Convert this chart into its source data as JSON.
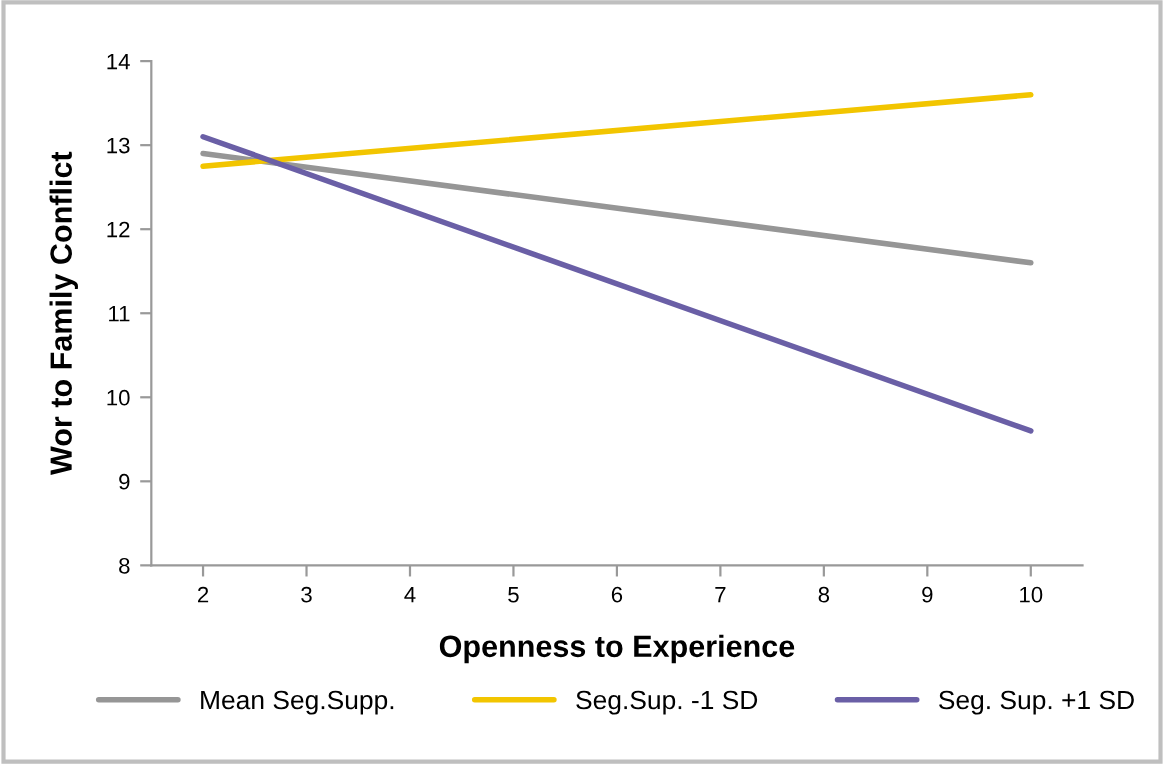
{
  "chart_data": {
    "type": "line",
    "xlabel": "Openness to Experience",
    "ylabel": "Wor to Family Conflict",
    "x": [
      2,
      10
    ],
    "series": [
      {
        "name": "Mean Seg.Supp.",
        "color": "#969696",
        "values": [
          12.9,
          11.6
        ]
      },
      {
        "name": "Seg.Sup. -1 SD",
        "color": "#f2c500",
        "values": [
          12.75,
          13.6
        ]
      },
      {
        "name": "Seg. Sup. +1 SD",
        "color": "#6a5fa6",
        "values": [
          13.1,
          9.6
        ]
      }
    ],
    "xlim": [
      1.5,
      10.5
    ],
    "xticks": [
      2,
      3,
      4,
      5,
      6,
      7,
      8,
      9,
      10
    ],
    "ylim": [
      8,
      14
    ],
    "yticks": [
      8,
      9,
      10,
      11,
      12,
      13,
      14
    ],
    "grid": false,
    "legend": "bottom",
    "marker": "none",
    "line_style": "solid"
  }
}
